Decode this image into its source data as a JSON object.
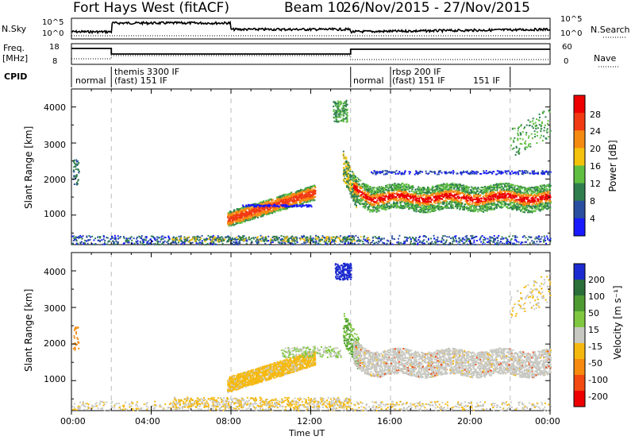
{
  "header": {
    "station": "Fort Hays West (fitACF)",
    "beam": "Beam 10",
    "dates": "26/Nov/2015 - 27/Nov/2015"
  },
  "panels": {
    "nsky": {
      "label": "N.Sky",
      "left_top": "10^5",
      "left_bottom": "10^0",
      "right_top": "10^5",
      "right_bottom": "10^0",
      "right_label": "N.Search"
    },
    "freq": {
      "label": "Freq.",
      "unit": "[MHz]",
      "left_top": "18",
      "left_bottom": "8",
      "right_top": "60",
      "right_bottom": "0",
      "right_label": "Nave"
    },
    "cpid": {
      "label": "CPID",
      "segments": [
        {
          "label": "normal"
        },
        {
          "label": "themis 3300 IF",
          "sublabel": "(fast) 151 IF"
        },
        {
          "label": "normal"
        },
        {
          "label": "rbsp 200 IF",
          "sublabel": "(fast) 151 IF"
        },
        {
          "label": "151 IF"
        }
      ]
    }
  },
  "axes": {
    "ylabel": "Slant Range [km]",
    "xlabel": "Time UT",
    "yticks": [
      "1000",
      "2000",
      "3000",
      "4000"
    ],
    "xticks": [
      "00:00",
      "04:00",
      "08:00",
      "12:00",
      "16:00",
      "20:00",
      "00:00"
    ]
  },
  "power_colorbar": {
    "label": "Power [dB]",
    "ticks": [
      "4",
      "8",
      "12",
      "16",
      "20",
      "24",
      "28"
    ],
    "colors": [
      "#1a1aff",
      "#2b4fa0",
      "#2f7f4e",
      "#5fbf40",
      "#f4c20d",
      "#f58a10",
      "#f23a12",
      "#ee0000"
    ]
  },
  "velocity_colorbar": {
    "label": "Velocity [m s⁻¹]",
    "ticks": [
      "200",
      "100",
      "50",
      "15",
      "-15",
      "-50",
      "-100",
      "-200"
    ],
    "colors": [
      "#1c2bcf",
      "#2a6e3a",
      "#4e9b32",
      "#7fc73f",
      "#c8c8c2",
      "#f5b80e",
      "#f58a0f",
      "#f24a10",
      "#ee0000"
    ]
  },
  "chart_data": {
    "type": "heatmap",
    "title": "Fort Hays West (fitACF) Beam 10 26/Nov/2015 - 27/Nov/2015",
    "xlabel": "Time UT",
    "ylabel": "Slant Range [km]",
    "x_range": [
      "00:00",
      "24:00"
    ],
    "ylim": [
      180,
      4500
    ],
    "series": [
      {
        "name": "Power [dB]",
        "zlim": [
          0,
          32
        ]
      },
      {
        "name": "Velocity [m s⁻¹]",
        "zlim": [
          -250,
          250
        ]
      }
    ]
  }
}
